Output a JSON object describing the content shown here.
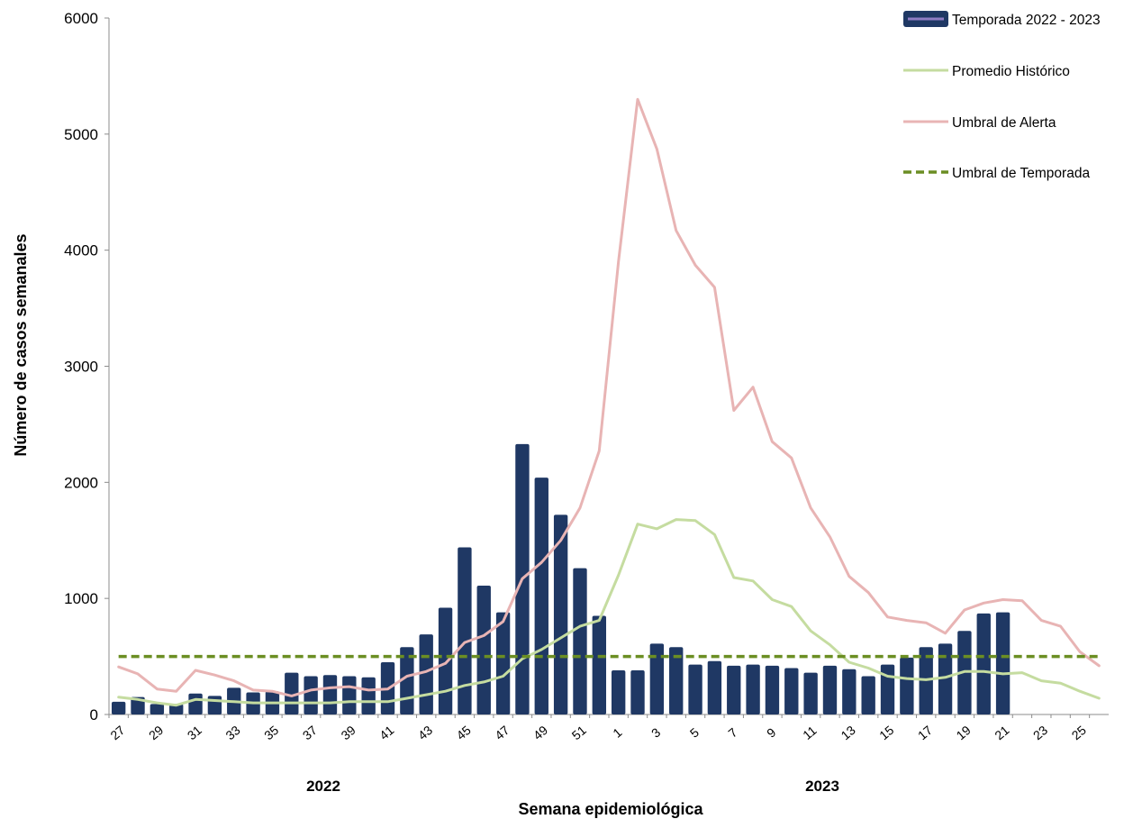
{
  "chart_data": {
    "type": "bar",
    "title": "",
    "xlabel": "Semana epidemiológica",
    "ylabel": "Número de casos semanales",
    "ylim": [
      0,
      6000
    ],
    "yticks": [
      "0",
      "1000",
      "2000",
      "3000",
      "4000",
      "5000",
      "6000"
    ],
    "year_labels": [
      "2022",
      "2023"
    ],
    "weeks": [
      "27",
      "28",
      "29",
      "30",
      "31",
      "32",
      "33",
      "34",
      "35",
      "36",
      "37",
      "38",
      "39",
      "40",
      "41",
      "42",
      "43",
      "44",
      "45",
      "46",
      "47",
      "48",
      "49",
      "50",
      "51",
      "52",
      "1",
      "2",
      "3",
      "4",
      "5",
      "6",
      "7",
      "8",
      "9",
      "10",
      "11",
      "12",
      "13",
      "14",
      "15",
      "16",
      "17",
      "18",
      "19",
      "20",
      "21",
      "22",
      "23",
      "24",
      "25",
      "26"
    ],
    "tick_labels": [
      "27",
      "29",
      "31",
      "33",
      "35",
      "37",
      "39",
      "41",
      "43",
      "45",
      "47",
      "49",
      "51",
      "1",
      "3",
      "5",
      "7",
      "9",
      "11",
      "13",
      "15",
      "17",
      "19",
      "21",
      "23",
      "25"
    ],
    "grid": false,
    "legend_position": "top-right",
    "series": [
      {
        "name": "Temporada 2022 - 2023",
        "kind": "bar",
        "color": "#1f3864",
        "values": [
          110,
          150,
          90,
          90,
          180,
          160,
          230,
          190,
          200,
          360,
          330,
          340,
          330,
          320,
          450,
          580,
          690,
          920,
          1440,
          1110,
          880,
          2330,
          2040,
          1720,
          1260,
          850,
          380,
          380,
          610,
          580,
          430,
          460,
          420,
          430,
          420,
          400,
          360,
          420,
          390,
          330,
          430,
          490,
          580,
          610,
          720,
          870,
          880,
          null,
          null,
          null,
          null,
          null
        ]
      },
      {
        "name": "Promedio Histórico",
        "kind": "line",
        "color": "#c5dca0",
        "values": [
          150,
          130,
          100,
          80,
          130,
          120,
          110,
          100,
          100,
          100,
          100,
          100,
          110,
          110,
          110,
          140,
          170,
          200,
          250,
          280,
          330,
          480,
          560,
          660,
          760,
          810,
          1200,
          1640,
          1600,
          1680,
          1670,
          1550,
          1180,
          1150,
          990,
          930,
          720,
          600,
          450,
          400,
          330,
          310,
          300,
          320,
          370,
          370,
          350,
          360,
          290,
          270,
          200,
          140
        ]
      },
      {
        "name": "Umbral de Alerta",
        "kind": "line",
        "color": "#e8b4b4",
        "values": [
          410,
          350,
          220,
          200,
          380,
          340,
          290,
          210,
          200,
          160,
          210,
          230,
          240,
          210,
          220,
          330,
          370,
          440,
          620,
          680,
          800,
          1170,
          1310,
          1500,
          1780,
          2270,
          3900,
          5300,
          4870,
          4170,
          3870,
          3680,
          2620,
          2820,
          2350,
          2210,
          1780,
          1530,
          1190,
          1050,
          840,
          810,
          790,
          700,
          900,
          960,
          990,
          980,
          810,
          760,
          540,
          420
        ]
      },
      {
        "name": "Umbral de Temporada",
        "kind": "dashed",
        "color": "#6b8e23",
        "value": 500
      }
    ]
  }
}
